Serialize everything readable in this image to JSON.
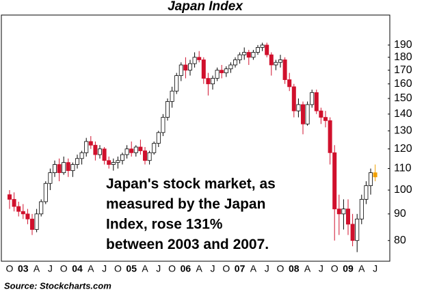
{
  "chart_data": {
    "type": "candlestick",
    "title": "Japan Index",
    "source": "Source: Stockcharts.com",
    "annotation": [
      "Japan's stock market, as",
      "measured by the Japan",
      "Index, rose 131%",
      "between 2003 and 2007."
    ],
    "log_scale": true,
    "ylim": [
      73,
      217
    ],
    "yticks": [
      80,
      90,
      100,
      110,
      120,
      130,
      140,
      150,
      160,
      170,
      180,
      190
    ],
    "up_color": "#ffffff",
    "down_color": "#d0102c",
    "last_color": "#f0a000",
    "annotation_color": "#1a1adc",
    "categories": [
      "O",
      null,
      null,
      "03",
      null,
      null,
      "A",
      null,
      null,
      "J",
      null,
      null,
      "O",
      null,
      null,
      "04",
      null,
      null,
      "A",
      null,
      null,
      "J",
      null,
      null,
      "O",
      null,
      null,
      "05",
      null,
      null,
      "A",
      null,
      null,
      "J",
      null,
      null,
      "O",
      null,
      null,
      "06",
      null,
      null,
      "A",
      null,
      null,
      "J",
      null,
      null,
      "O",
      null,
      null,
      "07",
      null,
      null,
      "A",
      null,
      null,
      "J",
      null,
      null,
      "O",
      null,
      null,
      "08",
      null,
      null,
      "A",
      null,
      null,
      "J",
      null,
      null,
      "O",
      null,
      null,
      "09",
      null,
      null,
      "A",
      null,
      null,
      "J"
    ],
    "open": [
      98,
      96,
      93,
      91,
      90,
      88,
      84,
      90,
      95,
      103,
      108,
      112,
      108,
      113,
      109,
      112,
      115,
      118,
      124,
      122,
      117,
      120,
      114,
      112,
      113,
      114,
      117,
      120,
      118,
      121,
      119,
      114,
      118,
      123,
      129,
      138,
      148,
      155,
      166,
      174,
      170,
      175,
      180,
      178,
      164,
      160,
      164,
      170,
      168,
      171,
      174,
      178,
      182,
      184,
      180,
      184,
      188,
      190,
      182,
      174,
      176,
      178,
      163,
      158,
      142,
      146,
      134,
      146,
      154,
      142,
      138,
      136,
      118,
      92,
      90,
      92,
      86,
      80,
      88,
      96,
      102,
      108
    ],
    "high": [
      100,
      99,
      95,
      94,
      92,
      90,
      92,
      96,
      104,
      110,
      114,
      115,
      116,
      115,
      113,
      117,
      119,
      126,
      127,
      124,
      122,
      121,
      116,
      115,
      116,
      118,
      122,
      124,
      122,
      125,
      121,
      119,
      124,
      130,
      140,
      150,
      158,
      168,
      176,
      180,
      178,
      184,
      185,
      180,
      168,
      166,
      172,
      174,
      173,
      176,
      180,
      184,
      188,
      186,
      186,
      190,
      192,
      192,
      184,
      178,
      182,
      180,
      168,
      160,
      150,
      148,
      148,
      156,
      156,
      144,
      142,
      138,
      122,
      98,
      96,
      96,
      90,
      90,
      98,
      104,
      110,
      112
    ],
    "low": [
      92,
      91,
      89,
      88,
      86,
      82,
      83,
      89,
      94,
      100,
      106,
      104,
      107,
      106,
      106,
      110,
      112,
      116,
      120,
      114,
      115,
      112,
      110,
      109,
      110,
      112,
      115,
      116,
      116,
      117,
      112,
      112,
      117,
      121,
      127,
      136,
      144,
      153,
      162,
      164,
      166,
      172,
      176,
      160,
      152,
      156,
      162,
      164,
      165,
      168,
      172,
      175,
      178,
      174,
      178,
      182,
      185,
      180,
      166,
      170,
      172,
      160,
      155,
      138,
      138,
      128,
      133,
      144,
      140,
      134,
      132,
      112,
      80,
      82,
      84,
      82,
      78,
      76,
      86,
      94,
      98,
      104
    ],
    "close": [
      96,
      93,
      91,
      90,
      88,
      84,
      90,
      95,
      103,
      108,
      112,
      108,
      113,
      109,
      112,
      115,
      118,
      124,
      122,
      117,
      120,
      114,
      112,
      113,
      114,
      117,
      120,
      118,
      121,
      119,
      114,
      118,
      123,
      129,
      138,
      148,
      155,
      166,
      174,
      170,
      175,
      180,
      178,
      164,
      160,
      164,
      170,
      168,
      171,
      174,
      178,
      182,
      184,
      180,
      184,
      188,
      190,
      182,
      174,
      176,
      178,
      163,
      158,
      142,
      146,
      134,
      146,
      154,
      142,
      138,
      136,
      118,
      92,
      90,
      92,
      86,
      80,
      88,
      96,
      102,
      108,
      106
    ]
  }
}
